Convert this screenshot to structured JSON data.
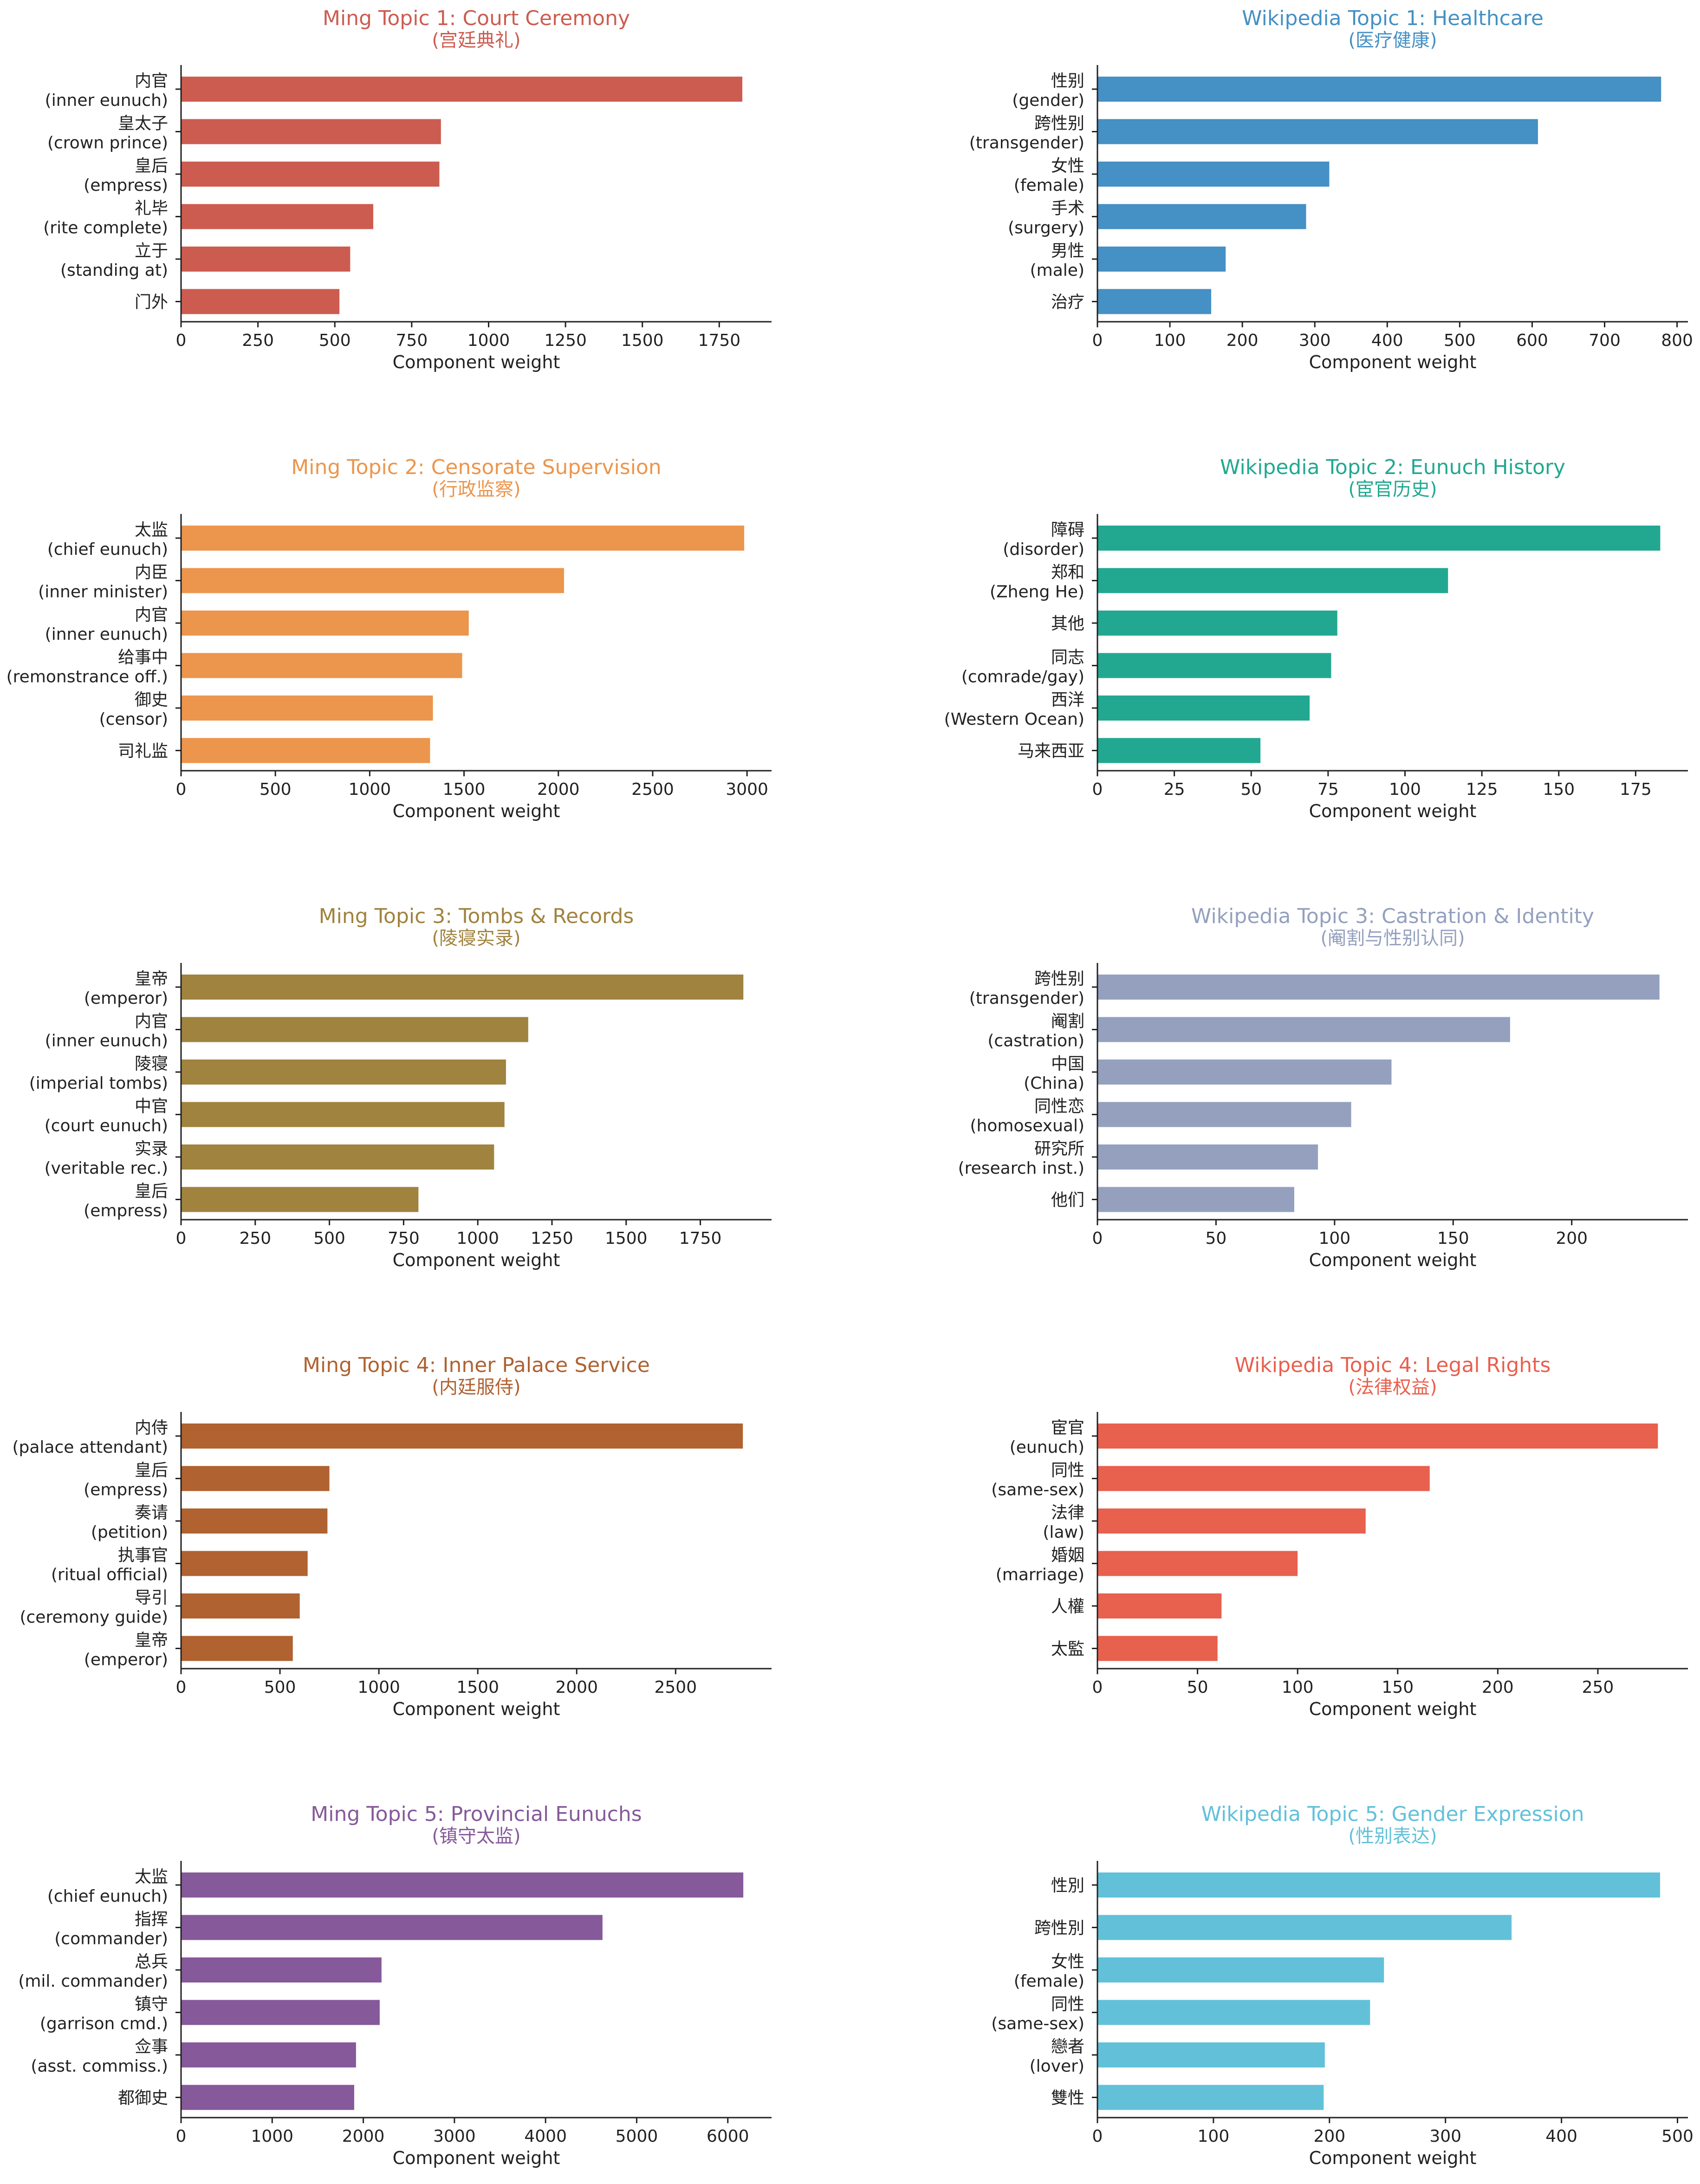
{
  "chart_data": [
    {
      "type": "bar",
      "orientation": "horizontal",
      "title": "Ming Topic 1: Court Ceremony",
      "subtitle": "(宫廷典礼)",
      "color": "#cd5c50",
      "xlabel": "Component weight",
      "xlim": [
        0,
        1920
      ],
      "xticks": [
        0,
        250,
        500,
        750,
        1000,
        1250,
        1500,
        1750
      ],
      "categories": [
        {
          "zh": "内官",
          "en": "(inner eunuch)"
        },
        {
          "zh": "皇太子",
          "en": "(crown prince)"
        },
        {
          "zh": "皇后",
          "en": "(empress)"
        },
        {
          "zh": "礼毕",
          "en": "(rite complete)"
        },
        {
          "zh": "立于",
          "en": "(standing at)"
        },
        {
          "zh": "门外",
          "en": ""
        }
      ],
      "values": [
        1825,
        845,
        840,
        625,
        550,
        515
      ]
    },
    {
      "type": "bar",
      "orientation": "horizontal",
      "title": "Wikipedia Topic 1: Healthcare",
      "subtitle": "(医疗健康)",
      "color": "#4590c4",
      "xlabel": "Component weight",
      "xlim": [
        0,
        815
      ],
      "xticks": [
        0,
        100,
        200,
        300,
        400,
        500,
        600,
        700,
        800
      ],
      "categories": [
        {
          "zh": "性别",
          "en": "(gender)"
        },
        {
          "zh": "跨性别",
          "en": "(transgender)"
        },
        {
          "zh": "女性",
          "en": "(female)"
        },
        {
          "zh": "手术",
          "en": "(surgery)"
        },
        {
          "zh": "男性",
          "en": "(male)"
        },
        {
          "zh": "治疗",
          "en": ""
        }
      ],
      "values": [
        778,
        608,
        320,
        288,
        177,
        157
      ]
    },
    {
      "type": "bar",
      "orientation": "horizontal",
      "title": "Ming Topic 2: Censorate Supervision",
      "subtitle": "(行政监察)",
      "color": "#ec954c",
      "xlabel": "Component weight",
      "xlim": [
        0,
        3130
      ],
      "xticks": [
        0,
        500,
        1000,
        1500,
        2000,
        2500,
        3000
      ],
      "categories": [
        {
          "zh": "太监",
          "en": "(chief eunuch)"
        },
        {
          "zh": "内臣",
          "en": "(inner minister)"
        },
        {
          "zh": "内官",
          "en": "(inner eunuch)"
        },
        {
          "zh": "给事中",
          "en": "(remonstrance off.)"
        },
        {
          "zh": "御史",
          "en": "(censor)"
        },
        {
          "zh": "司礼监",
          "en": ""
        }
      ],
      "values": [
        2985,
        2030,
        1525,
        1490,
        1335,
        1320
      ]
    },
    {
      "type": "bar",
      "orientation": "horizontal",
      "title": "Wikipedia Topic 2: Eunuch History",
      "subtitle": "(宦官历史)",
      "color": "#22a891",
      "xlabel": "Component weight",
      "xlim": [
        0,
        192
      ],
      "xticks": [
        0,
        25,
        50,
        75,
        100,
        125,
        150,
        175
      ],
      "categories": [
        {
          "zh": "障碍",
          "en": "(disorder)"
        },
        {
          "zh": "郑和",
          "en": "(Zheng He)"
        },
        {
          "zh": "其他",
          "en": ""
        },
        {
          "zh": "同志",
          "en": "(comrade/gay)"
        },
        {
          "zh": "西洋",
          "en": "(Western Ocean)"
        },
        {
          "zh": "马来西亚",
          "en": ""
        }
      ],
      "values": [
        183,
        114,
        78,
        76,
        69,
        53
      ]
    },
    {
      "type": "bar",
      "orientation": "horizontal",
      "title": "Ming Topic 3: Tombs & Records",
      "subtitle": "(陵寝实录)",
      "color": "#a0833e",
      "xlabel": "Component weight",
      "xlim": [
        0,
        1990
      ],
      "xticks": [
        0,
        250,
        500,
        750,
        1000,
        1250,
        1500,
        1750
      ],
      "categories": [
        {
          "zh": "皇帝",
          "en": "(emperor)"
        },
        {
          "zh": "内官",
          "en": "(inner eunuch)"
        },
        {
          "zh": "陵寝",
          "en": "(imperial tombs)"
        },
        {
          "zh": "中官",
          "en": "(court eunuch)"
        },
        {
          "zh": "实录",
          "en": "(veritable rec.)"
        },
        {
          "zh": "皇后",
          "en": "(empress)"
        }
      ],
      "values": [
        1895,
        1170,
        1095,
        1090,
        1055,
        800
      ]
    },
    {
      "type": "bar",
      "orientation": "horizontal",
      "title": "Wikipedia Topic 3: Castration & Identity",
      "subtitle": "(阉割与性别认同)",
      "color": "#94a0be",
      "xlabel": "Component weight",
      "xlim": [
        0,
        249
      ],
      "xticks": [
        0,
        50,
        100,
        150,
        200
      ],
      "categories": [
        {
          "zh": "跨性别",
          "en": "(transgender)"
        },
        {
          "zh": "阉割",
          "en": "(castration)"
        },
        {
          "zh": "中国",
          "en": "(China)"
        },
        {
          "zh": "同性恋",
          "en": "(homosexual)"
        },
        {
          "zh": "研究所",
          "en": "(research inst.)"
        },
        {
          "zh": "他们",
          "en": ""
        }
      ],
      "values": [
        237,
        174,
        124,
        107,
        93,
        83
      ]
    },
    {
      "type": "bar",
      "orientation": "horizontal",
      "title": "Ming Topic 4: Inner Palace Service",
      "subtitle": "(内廷服侍)",
      "color": "#b06231",
      "xlabel": "Component weight",
      "xlim": [
        0,
        2985
      ],
      "xticks": [
        0,
        500,
        1000,
        1500,
        2000,
        2500
      ],
      "categories": [
        {
          "zh": "内侍",
          "en": "(palace attendant)"
        },
        {
          "zh": "皇后",
          "en": "(empress)"
        },
        {
          "zh": "奏请",
          "en": "(petition)"
        },
        {
          "zh": "执事官",
          "en": "(ritual official)"
        },
        {
          "zh": "导引",
          "en": "(ceremony guide)"
        },
        {
          "zh": "皇帝",
          "en": "(emperor)"
        }
      ],
      "values": [
        2840,
        750,
        740,
        640,
        600,
        565
      ]
    },
    {
      "type": "bar",
      "orientation": "horizontal",
      "title": "Wikipedia Topic 4: Legal Rights",
      "subtitle": "(法律权益)",
      "color": "#e8604e",
      "xlabel": "Component weight",
      "xlim": [
        0,
        295
      ],
      "xticks": [
        0,
        50,
        100,
        150,
        200,
        250
      ],
      "categories": [
        {
          "zh": "宦官",
          "en": "(eunuch)"
        },
        {
          "zh": "同性",
          "en": "(same-sex)"
        },
        {
          "zh": "法律",
          "en": "(law)"
        },
        {
          "zh": "婚姻",
          "en": "(marriage)"
        },
        {
          "zh": "人權",
          "en": ""
        },
        {
          "zh": "太監",
          "en": ""
        }
      ],
      "values": [
        280,
        166,
        134,
        100,
        62,
        60
      ]
    },
    {
      "type": "bar",
      "orientation": "horizontal",
      "title": "Ming Topic 5: Provincial Eunuchs",
      "subtitle": "(镇守太监)",
      "color": "#86599a",
      "xlabel": "Component weight",
      "xlim": [
        0,
        6480
      ],
      "xticks": [
        0,
        1000,
        2000,
        3000,
        4000,
        5000,
        6000
      ],
      "categories": [
        {
          "zh": "太监",
          "en": "(chief eunuch)"
        },
        {
          "zh": "指挥",
          "en": "(commander)"
        },
        {
          "zh": "总兵",
          "en": "(mil. commander)"
        },
        {
          "zh": "镇守",
          "en": "(garrison cmd.)"
        },
        {
          "zh": "佥事",
          "en": "(asst. commiss.)"
        },
        {
          "zh": "都御史",
          "en": ""
        }
      ],
      "values": [
        6170,
        4625,
        2200,
        2180,
        1920,
        1900
      ]
    },
    {
      "type": "bar",
      "orientation": "horizontal",
      "title": "Wikipedia Topic 5: Gender Expression",
      "subtitle": "(性别表达)",
      "color": "#62c1d9",
      "xlabel": "Component weight",
      "xlim": [
        0,
        509
      ],
      "xticks": [
        0,
        100,
        200,
        300,
        400,
        500
      ],
      "categories": [
        {
          "zh": "性別",
          "en": ""
        },
        {
          "zh": "跨性別",
          "en": ""
        },
        {
          "zh": "女性",
          "en": "(female)"
        },
        {
          "zh": "同性",
          "en": "(same-sex)"
        },
        {
          "zh": "戀者",
          "en": "(lover)"
        },
        {
          "zh": "雙性",
          "en": ""
        }
      ],
      "values": [
        485,
        357,
        247,
        235,
        196,
        195
      ]
    }
  ]
}
